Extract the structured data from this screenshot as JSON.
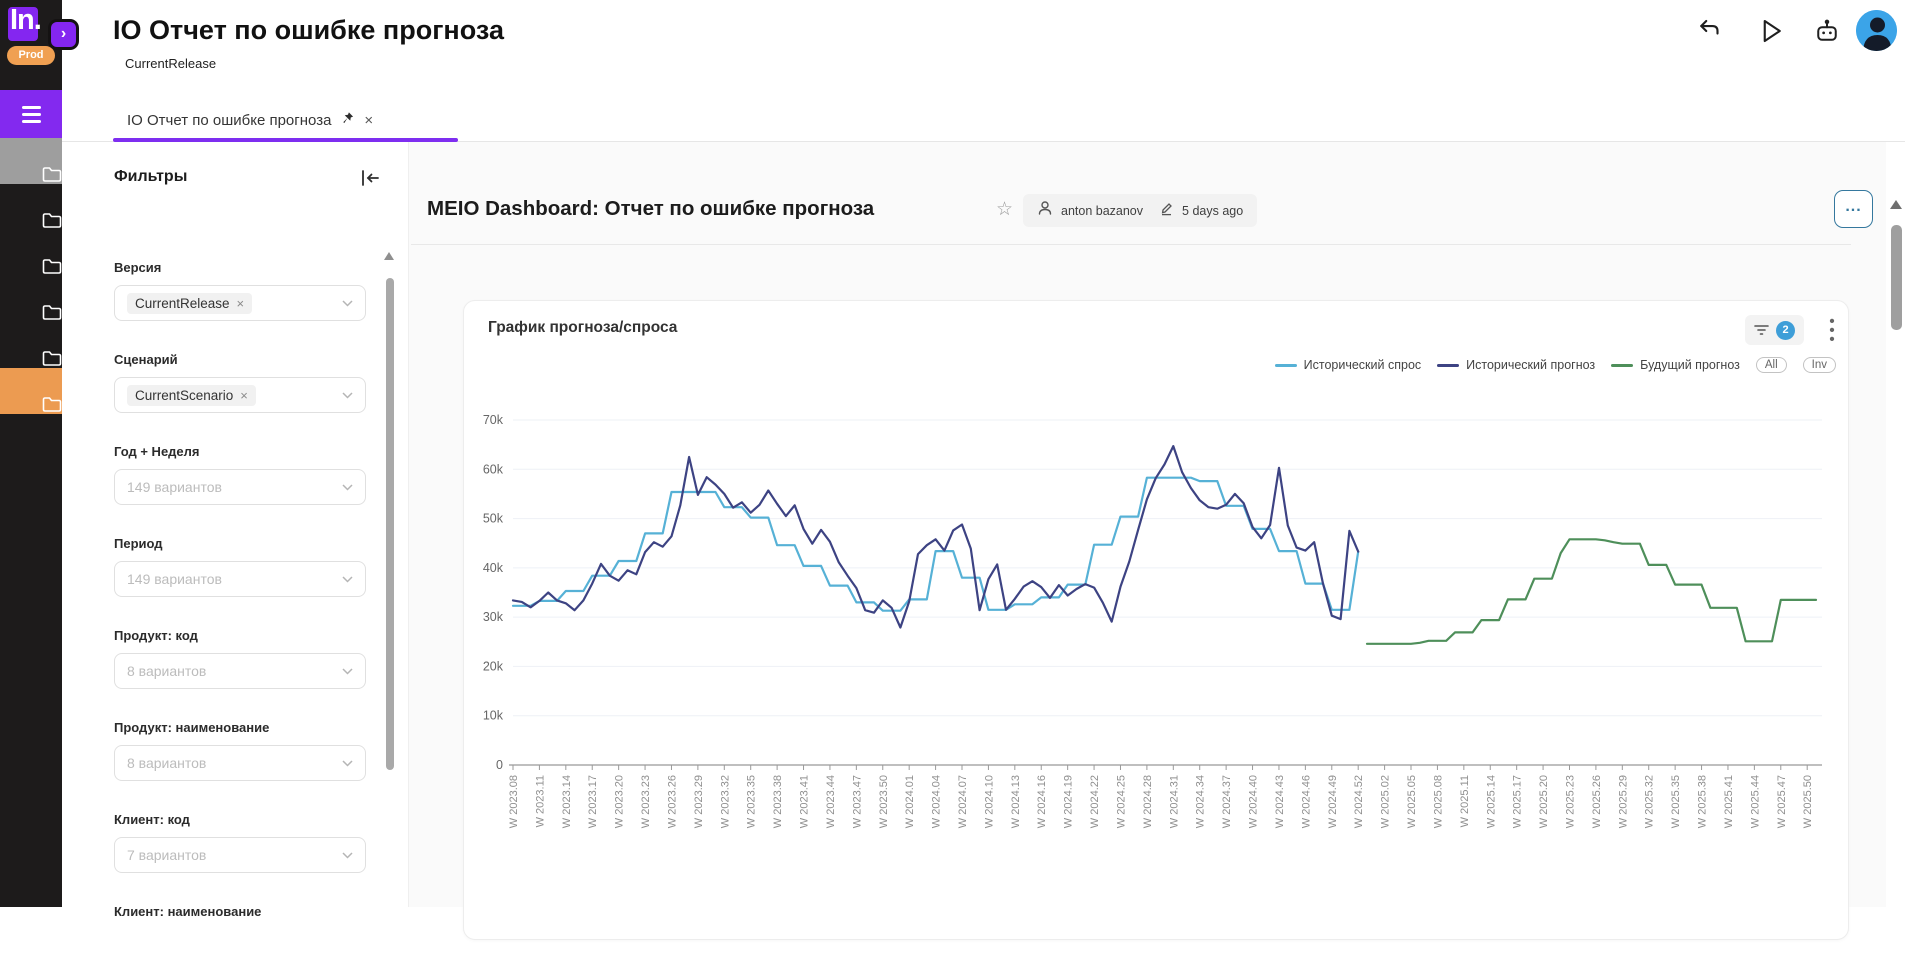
{
  "app": {
    "logo_text": "In.",
    "env_badge": "Prod",
    "expand_glyph": "›"
  },
  "header": {
    "title": "IO Отчет по ошибке прогноза",
    "subtitle": "CurrentRelease"
  },
  "tab": {
    "label": "IO Отчет по ошибке прогноза",
    "close_glyph": "×"
  },
  "sidebar": {
    "items": [
      {
        "name": "folder-1",
        "state": "selected-gray"
      },
      {
        "name": "folder-2",
        "state": "default"
      },
      {
        "name": "folder-3",
        "state": "default"
      },
      {
        "name": "folder-4",
        "state": "default"
      },
      {
        "name": "folder-5",
        "state": "default"
      },
      {
        "name": "folder-6",
        "state": "selected-orange"
      }
    ]
  },
  "filters": {
    "heading": "Фильтры",
    "fields": [
      {
        "label": "Версия",
        "type": "chip",
        "value": "CurrentRelease"
      },
      {
        "label": "Сценарий",
        "type": "chip",
        "value": "CurrentScenario"
      },
      {
        "label": "Год + Неделя",
        "type": "placeholder",
        "value": "149 вариантов"
      },
      {
        "label": "Период",
        "type": "placeholder",
        "value": "149 вариантов"
      },
      {
        "label": "Продукт: код",
        "type": "placeholder",
        "value": "8 вариантов"
      },
      {
        "label": "Продукт: наименование",
        "type": "placeholder",
        "value": "8 вариантов"
      },
      {
        "label": "Клиент: код",
        "type": "placeholder",
        "value": "7 вариантов"
      },
      {
        "label": "Клиент: наименование",
        "type": "label-only",
        "value": ""
      }
    ]
  },
  "dashboard": {
    "title": "MEIO Dashboard: Отчет по ошибке прогноза",
    "star_glyph": "☆",
    "author": "anton bazanov",
    "edited": "5 days ago",
    "more_label": "..."
  },
  "chart_card": {
    "title": "График прогноза/спроса",
    "filter_badge_count": "2",
    "kebab_glyph": "⋮",
    "toggle_buttons": [
      "All",
      "Inv"
    ]
  },
  "chart_data": {
    "type": "line",
    "title": "График прогноза/спроса",
    "unit": "values are thousands (k)",
    "ylim_k": [
      0,
      70
    ],
    "y_tick_labels": [
      "0",
      "10k",
      "20k",
      "30k",
      "40k",
      "50k",
      "60k",
      "70k"
    ],
    "x_weeks_total": 149,
    "x_label_every_weeks": 3,
    "x_labels": [
      "W 2023.08",
      "W 2023.11",
      "W 2023.14",
      "W 2023.17",
      "W 2023.20",
      "W 2023.23",
      "W 2023.26",
      "W 2023.29",
      "W 2023.32",
      "W 2023.35",
      "W 2023.38",
      "W 2023.41",
      "W 2023.44",
      "W 2023.47",
      "W 2023.50",
      "W 2024.01",
      "W 2024.04",
      "W 2024.07",
      "W 2024.10",
      "W 2024.13",
      "W 2024.16",
      "W 2024.19",
      "W 2024.22",
      "W 2024.25",
      "W 2024.28",
      "W 2024.31",
      "W 2024.34",
      "W 2024.37",
      "W 2024.40",
      "W 2024.43",
      "W 2024.46",
      "W 2024.49",
      "W 2024.52",
      "W 2025.02",
      "W 2025.05",
      "W 2025.08",
      "W 2025.11",
      "W 2025.14",
      "W 2025.17",
      "W 2025.20",
      "W 2025.23",
      "W 2025.26",
      "W 2025.29",
      "W 2025.32",
      "W 2025.35",
      "W 2025.38",
      "W 2025.41",
      "W 2025.44",
      "W 2025.47",
      "W 2025.50"
    ],
    "legend_position": "top-right",
    "grid": true,
    "series": [
      {
        "name": "Исторический спрос",
        "color": "#56b1d6",
        "start_week": 0,
        "values_k": [
          32.3,
          32.3,
          32.3,
          33.3,
          33.3,
          33.3,
          35.3,
          35.3,
          35.3,
          38.4,
          38.4,
          38.4,
          41.4,
          41.4,
          41.4,
          47,
          47,
          47,
          55.4,
          55.4,
          55.4,
          55.4,
          55.4,
          55.4,
          52.3,
          52.3,
          52.3,
          50.2,
          50.2,
          50.2,
          44.6,
          44.6,
          44.6,
          40.4,
          40.4,
          40.4,
          36.4,
          36.4,
          36.4,
          33,
          33,
          33,
          31.3,
          31.3,
          31.3,
          33.6,
          33.6,
          33.6,
          43.4,
          43.4,
          43.4,
          38,
          38,
          38,
          31.5,
          31.5,
          31.5,
          32.6,
          32.6,
          32.6,
          34,
          34,
          34,
          36.6,
          36.6,
          36.6,
          44.7,
          44.7,
          44.7,
          50.4,
          50.4,
          50.4,
          58.3,
          58.3,
          58.3,
          58.3,
          58.3,
          58.3,
          57.6,
          57.6,
          57.6,
          52.6,
          52.6,
          52.6,
          47.9,
          47.9,
          47.9,
          43.4,
          43.4,
          43.4,
          36.8,
          36.8,
          36.8,
          31.5,
          31.5,
          31.5,
          43.3
        ]
      },
      {
        "name": "Исторический прогноз",
        "color": "#3d4383",
        "start_week": 0,
        "values_k": [
          33.4,
          33.1,
          32.0,
          33.3,
          35.0,
          33.4,
          32.8,
          31.4,
          33.4,
          36.8,
          40.8,
          38.4,
          37.4,
          39.5,
          38.7,
          43.2,
          45.2,
          44.3,
          46.4,
          52.7,
          62.5,
          54.8,
          58.4,
          56.9,
          55.0,
          52.2,
          53.3,
          51.2,
          52.8,
          55.7,
          53.0,
          50.5,
          52.7,
          47.9,
          44.9,
          47.7,
          45.3,
          41.1,
          38.4,
          35.9,
          31.4,
          30.9,
          33.4,
          31.9,
          27.9,
          33.2,
          42.8,
          44.6,
          45.8,
          43.5,
          47.6,
          48.8,
          43.9,
          31.4,
          37.7,
          40.7,
          31.5,
          33.7,
          36.2,
          37.3,
          36.1,
          33.9,
          36.5,
          34.4,
          35.7,
          36.7,
          36.0,
          32.9,
          29.1,
          36.2,
          41.3,
          47.7,
          53.9,
          58.2,
          61.0,
          64.7,
          59.4,
          56.2,
          53.7,
          52.3,
          52.0,
          52.8,
          55.0,
          53.1,
          48.3,
          46.0,
          48.7,
          60.3,
          48.6,
          44.1,
          43.5,
          45.2,
          36.8,
          30.3,
          29.6,
          47.5,
          43.3
        ]
      },
      {
        "name": "Будущий прогноз",
        "color": "#4e8f5a",
        "start_week": 97,
        "values_k": [
          24.6,
          24.6,
          24.6,
          24.6,
          24.6,
          24.6,
          24.8,
          25.2,
          25.2,
          25.2,
          26.9,
          26.9,
          26.9,
          29.4,
          29.4,
          29.4,
          33.6,
          33.6,
          33.6,
          37.8,
          37.8,
          37.8,
          43.0,
          45.8,
          45.8,
          45.8,
          45.8,
          45.6,
          45.2,
          44.9,
          44.9,
          44.9,
          40.6,
          40.6,
          40.6,
          36.6,
          36.6,
          36.6,
          36.6,
          31.9,
          31.9,
          31.9,
          31.9,
          25.1,
          25.1,
          25.1,
          25.1,
          33.5,
          33.5,
          33.5,
          33.5,
          33.5
        ]
      }
    ]
  }
}
